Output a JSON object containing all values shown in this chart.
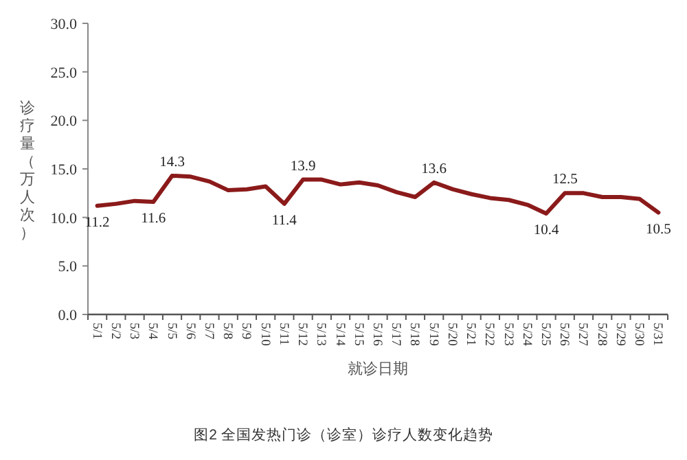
{
  "chart_data": {
    "type": "line",
    "title": "图2 全国发热门诊（诊室）诊疗人数变化趋势",
    "xlabel": "就诊日期",
    "ylabel": "诊疗量（万人次）",
    "categories": [
      "5/1",
      "5/2",
      "5/3",
      "5/4",
      "5/5",
      "5/6",
      "5/7",
      "5/8",
      "5/9",
      "5/10",
      "5/11",
      "5/12",
      "5/13",
      "5/14",
      "5/15",
      "5/16",
      "5/17",
      "5/18",
      "5/19",
      "5/20",
      "5/21",
      "5/22",
      "5/23",
      "5/24",
      "5/25",
      "5/26",
      "5/27",
      "5/28",
      "5/29",
      "5/30",
      "5/31"
    ],
    "series": [
      {
        "color": "#8b1a1a",
        "values": [
          11.2,
          11.4,
          11.7,
          11.6,
          14.3,
          14.2,
          13.7,
          12.8,
          12.9,
          13.2,
          11.4,
          13.9,
          13.9,
          13.4,
          13.6,
          13.3,
          12.6,
          12.1,
          13.6,
          12.9,
          12.4,
          12.0,
          11.8,
          11.3,
          10.4,
          12.5,
          12.5,
          12.1,
          12.1,
          11.9,
          10.5
        ],
        "value_labels": [
          "11.2",
          null,
          null,
          "11.6",
          "14.3",
          null,
          null,
          null,
          null,
          null,
          "11.4",
          "13.9",
          null,
          null,
          null,
          null,
          null,
          null,
          "13.6",
          null,
          null,
          null,
          null,
          null,
          "10.4",
          "12.5",
          null,
          null,
          null,
          null,
          "10.5"
        ]
      }
    ],
    "ylim": [
      0,
      30
    ],
    "yticks": [
      {
        "value": 0,
        "label": "0.0"
      },
      {
        "value": 5,
        "label": "5.0"
      },
      {
        "value": 10,
        "label": "10.0"
      },
      {
        "value": 15,
        "label": "15.0"
      },
      {
        "value": 20,
        "label": "20.0"
      },
      {
        "value": 25,
        "label": "25.0"
      },
      {
        "value": 30,
        "label": "30.0"
      }
    ],
    "grid": false,
    "marker": "none",
    "line_style": "solid"
  }
}
